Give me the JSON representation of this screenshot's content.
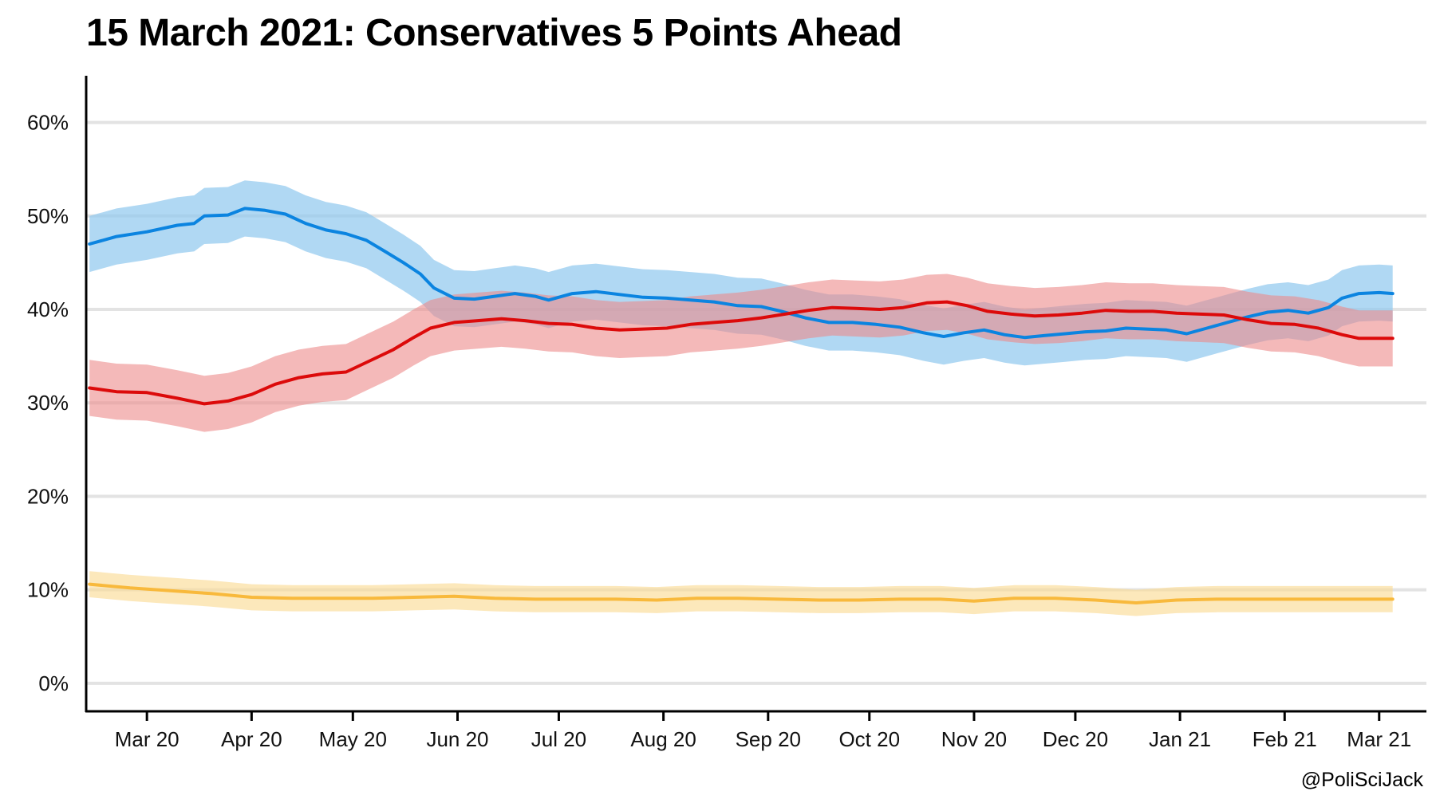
{
  "title": "15 March 2021: Conservatives 5 Points Ahead",
  "credit": "@PoliSciJack",
  "chart_data": {
    "type": "line",
    "title": "15 March 2021: Conservatives 5 Points Ahead",
    "xlabel": "",
    "ylabel": "",
    "x_type": "date",
    "xlim": [
      "2020-02-12",
      "2021-03-15"
    ],
    "ylim": [
      -3,
      65
    ],
    "grid": "horizontal",
    "legend": "none",
    "y_ticks": [
      {
        "value": 0,
        "label": "0%"
      },
      {
        "value": 10,
        "label": "10%"
      },
      {
        "value": 20,
        "label": "20%"
      },
      {
        "value": 30,
        "label": "30%"
      },
      {
        "value": 40,
        "label": "40%"
      },
      {
        "value": 50,
        "label": "50%"
      },
      {
        "value": 60,
        "label": "60%"
      }
    ],
    "x_ticks": [
      {
        "date": "2020-03-01",
        "label": "Mar 20"
      },
      {
        "date": "2020-04-01",
        "label": "Apr 20"
      },
      {
        "date": "2020-05-01",
        "label": "May 20"
      },
      {
        "date": "2020-06-01",
        "label": "Jun 20"
      },
      {
        "date": "2020-07-01",
        "label": "Jul 20"
      },
      {
        "date": "2020-08-01",
        "label": "Aug 20"
      },
      {
        "date": "2020-09-01",
        "label": "Sep 20"
      },
      {
        "date": "2020-10-01",
        "label": "Oct 20"
      },
      {
        "date": "2020-11-01",
        "label": "Nov 20"
      },
      {
        "date": "2020-12-01",
        "label": "Dec 20"
      },
      {
        "date": "2021-01-01",
        "label": "Jan 21"
      },
      {
        "date": "2021-02-01",
        "label": "Feb 21"
      },
      {
        "date": "2021-03-01",
        "label": "Mar 21"
      }
    ],
    "band_halfwidth": 3,
    "series": [
      {
        "color": "#0b84e0",
        "band_color": "#8fc8ee",
        "band_opacity": 0.7,
        "band_halfwidth": 3,
        "points": [
          [
            "2020-02-13",
            47.0
          ],
          [
            "2020-02-21",
            47.8
          ],
          [
            "2020-03-01",
            48.3
          ],
          [
            "2020-03-10",
            49.0
          ],
          [
            "2020-03-15",
            49.2
          ],
          [
            "2020-03-18",
            50.0
          ],
          [
            "2020-03-25",
            50.1
          ],
          [
            "2020-03-30",
            50.8
          ],
          [
            "2020-04-05",
            50.6
          ],
          [
            "2020-04-11",
            50.2
          ],
          [
            "2020-04-17",
            49.2
          ],
          [
            "2020-04-23",
            48.5
          ],
          [
            "2020-04-29",
            48.1
          ],
          [
            "2020-05-05",
            47.4
          ],
          [
            "2020-05-11",
            46.1
          ],
          [
            "2020-05-16",
            45.0
          ],
          [
            "2020-05-21",
            43.8
          ],
          [
            "2020-05-25",
            42.3
          ],
          [
            "2020-05-31",
            41.2
          ],
          [
            "2020-06-06",
            41.1
          ],
          [
            "2020-06-12",
            41.4
          ],
          [
            "2020-06-18",
            41.7
          ],
          [
            "2020-06-24",
            41.4
          ],
          [
            "2020-06-28",
            41.0
          ],
          [
            "2020-07-05",
            41.7
          ],
          [
            "2020-07-12",
            41.9
          ],
          [
            "2020-07-19",
            41.6
          ],
          [
            "2020-07-26",
            41.3
          ],
          [
            "2020-08-02",
            41.2
          ],
          [
            "2020-08-09",
            41.0
          ],
          [
            "2020-08-16",
            40.8
          ],
          [
            "2020-08-23",
            40.4
          ],
          [
            "2020-08-30",
            40.3
          ],
          [
            "2020-09-05",
            39.8
          ],
          [
            "2020-09-12",
            39.1
          ],
          [
            "2020-09-19",
            38.6
          ],
          [
            "2020-09-26",
            38.6
          ],
          [
            "2020-10-03",
            38.4
          ],
          [
            "2020-10-10",
            38.1
          ],
          [
            "2020-10-17",
            37.5
          ],
          [
            "2020-10-23",
            37.1
          ],
          [
            "2020-10-29",
            37.5
          ],
          [
            "2020-11-04",
            37.8
          ],
          [
            "2020-11-10",
            37.3
          ],
          [
            "2020-11-16",
            37.0
          ],
          [
            "2020-11-22",
            37.2
          ],
          [
            "2020-11-28",
            37.4
          ],
          [
            "2020-12-04",
            37.6
          ],
          [
            "2020-12-10",
            37.7
          ],
          [
            "2020-12-16",
            38.0
          ],
          [
            "2020-12-22",
            37.9
          ],
          [
            "2020-12-28",
            37.8
          ],
          [
            "2021-01-03",
            37.4
          ],
          [
            "2021-01-09",
            38.0
          ],
          [
            "2021-01-15",
            38.6
          ],
          [
            "2021-01-21",
            39.2
          ],
          [
            "2021-01-27",
            39.7
          ],
          [
            "2021-02-02",
            39.9
          ],
          [
            "2021-02-08",
            39.6
          ],
          [
            "2021-02-14",
            40.2
          ],
          [
            "2021-02-18",
            41.2
          ],
          [
            "2021-02-23",
            41.7
          ],
          [
            "2021-03-01",
            41.8
          ],
          [
            "2021-03-05",
            41.7
          ]
        ]
      },
      {
        "color": "#dc0a0a",
        "band_color": "#ec8a8a",
        "band_opacity": 0.6,
        "band_halfwidth": 3,
        "points": [
          [
            "2020-02-13",
            31.6
          ],
          [
            "2020-02-21",
            31.2
          ],
          [
            "2020-03-01",
            31.1
          ],
          [
            "2020-03-10",
            30.5
          ],
          [
            "2020-03-18",
            29.9
          ],
          [
            "2020-03-25",
            30.2
          ],
          [
            "2020-04-01",
            30.9
          ],
          [
            "2020-04-08",
            32.0
          ],
          [
            "2020-04-15",
            32.7
          ],
          [
            "2020-04-22",
            33.1
          ],
          [
            "2020-04-29",
            33.3
          ],
          [
            "2020-05-06",
            34.5
          ],
          [
            "2020-05-13",
            35.7
          ],
          [
            "2020-05-19",
            37.0
          ],
          [
            "2020-05-24",
            38.0
          ],
          [
            "2020-05-31",
            38.6
          ],
          [
            "2020-06-07",
            38.8
          ],
          [
            "2020-06-14",
            39.0
          ],
          [
            "2020-06-21",
            38.8
          ],
          [
            "2020-06-28",
            38.5
          ],
          [
            "2020-07-05",
            38.4
          ],
          [
            "2020-07-12",
            38.0
          ],
          [
            "2020-07-19",
            37.8
          ],
          [
            "2020-07-26",
            37.9
          ],
          [
            "2020-08-02",
            38.0
          ],
          [
            "2020-08-09",
            38.4
          ],
          [
            "2020-08-16",
            38.6
          ],
          [
            "2020-08-23",
            38.8
          ],
          [
            "2020-08-30",
            39.1
          ],
          [
            "2020-09-06",
            39.5
          ],
          [
            "2020-09-13",
            39.9
          ],
          [
            "2020-09-20",
            40.2
          ],
          [
            "2020-09-27",
            40.1
          ],
          [
            "2020-10-04",
            40.0
          ],
          [
            "2020-10-11",
            40.2
          ],
          [
            "2020-10-18",
            40.7
          ],
          [
            "2020-10-24",
            40.8
          ],
          [
            "2020-10-30",
            40.4
          ],
          [
            "2020-11-05",
            39.8
          ],
          [
            "2020-11-12",
            39.5
          ],
          [
            "2020-11-19",
            39.3
          ],
          [
            "2020-11-26",
            39.4
          ],
          [
            "2020-12-03",
            39.6
          ],
          [
            "2020-12-10",
            39.9
          ],
          [
            "2020-12-17",
            39.8
          ],
          [
            "2020-12-24",
            39.8
          ],
          [
            "2020-12-31",
            39.6
          ],
          [
            "2021-01-07",
            39.5
          ],
          [
            "2021-01-14",
            39.4
          ],
          [
            "2021-01-21",
            38.9
          ],
          [
            "2021-01-28",
            38.5
          ],
          [
            "2021-02-04",
            38.4
          ],
          [
            "2021-02-11",
            38.0
          ],
          [
            "2021-02-18",
            37.3
          ],
          [
            "2021-02-23",
            36.9
          ],
          [
            "2021-03-01",
            36.9
          ],
          [
            "2021-03-05",
            36.9
          ]
        ]
      },
      {
        "color": "#f8b93c",
        "band_color": "#fbdc97",
        "band_opacity": 0.65,
        "band_halfwidth": 1.4,
        "points": [
          [
            "2020-02-13",
            10.6
          ],
          [
            "2020-02-25",
            10.2
          ],
          [
            "2020-03-08",
            9.9
          ],
          [
            "2020-03-20",
            9.6
          ],
          [
            "2020-04-01",
            9.2
          ],
          [
            "2020-04-13",
            9.1
          ],
          [
            "2020-04-25",
            9.1
          ],
          [
            "2020-05-07",
            9.1
          ],
          [
            "2020-05-19",
            9.2
          ],
          [
            "2020-05-31",
            9.3
          ],
          [
            "2020-06-12",
            9.1
          ],
          [
            "2020-06-24",
            9.0
          ],
          [
            "2020-07-06",
            9.0
          ],
          [
            "2020-07-18",
            9.0
          ],
          [
            "2020-07-30",
            8.9
          ],
          [
            "2020-08-11",
            9.1
          ],
          [
            "2020-08-23",
            9.1
          ],
          [
            "2020-09-04",
            9.0
          ],
          [
            "2020-09-16",
            8.9
          ],
          [
            "2020-09-28",
            8.9
          ],
          [
            "2020-10-10",
            9.0
          ],
          [
            "2020-10-22",
            9.0
          ],
          [
            "2020-11-01",
            8.8
          ],
          [
            "2020-11-13",
            9.1
          ],
          [
            "2020-11-25",
            9.1
          ],
          [
            "2020-12-07",
            8.9
          ],
          [
            "2020-12-19",
            8.6
          ],
          [
            "2020-12-31",
            8.9
          ],
          [
            "2021-01-12",
            9.0
          ],
          [
            "2021-01-24",
            9.0
          ],
          [
            "2021-02-05",
            9.0
          ],
          [
            "2021-02-17",
            9.0
          ],
          [
            "2021-03-05",
            9.0
          ]
        ]
      }
    ]
  }
}
